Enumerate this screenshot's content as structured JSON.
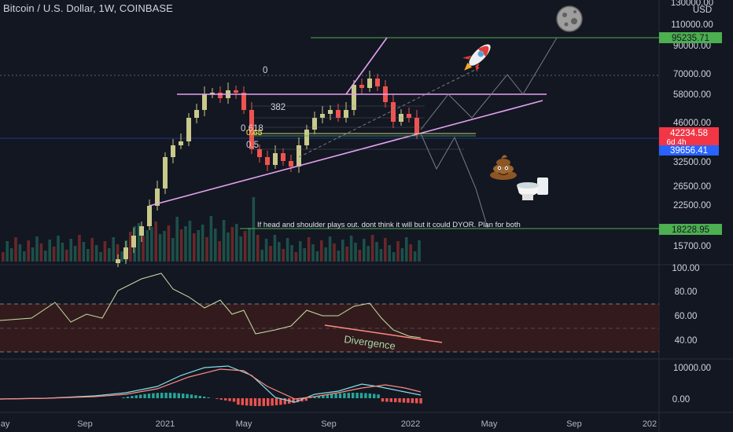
{
  "header": {
    "title": "Bitcoin / U.S. Dollar, 1W, COINBASE"
  },
  "price_axis": {
    "unit": "USD",
    "labels": [
      "130000.00",
      "110000.00",
      "90000.00",
      "70000.00",
      "58000.00",
      "46000.00",
      "32500.00",
      "26500.00",
      "22500.00",
      "15700.00"
    ],
    "badges": {
      "target": "95235.71",
      "current": "42234.58",
      "countdown": "6d 4h",
      "support": "39656.41",
      "lower": "18228.95"
    }
  },
  "rsi_axis": {
    "labels": [
      "100.00",
      "80.00",
      "60.00",
      "40.00"
    ]
  },
  "macd_axis": {
    "labels": [
      "10000.00",
      "0.00"
    ]
  },
  "time_axis": {
    "labels": [
      "May",
      "Sep",
      "2021",
      "May",
      "Sep",
      "2022",
      "May",
      "Sep",
      "202"
    ]
  },
  "annotations": {
    "fib_zero": "0",
    "fib_382": "382",
    "fib_618": "0.618",
    "fib_065": "0.65",
    "fib_05": "0.5",
    "note": "If head and shoulder plays out. dont think it will but it could DYOR. Plan for both",
    "divergence": "Divergence"
  },
  "colors": {
    "background": "#131722",
    "up": "#c9c98a",
    "down": "#ef5350",
    "pink": "#e4a1f0",
    "green_line": "#4caf50",
    "rsi_band": "#3a1c1c",
    "macd_line": "#7fe0e8",
    "signal_line": "#ff8a80",
    "current_badge": "#f23645",
    "support_badge": "#2962ff"
  },
  "icons": [
    "moon-icon",
    "rocket-icon",
    "poop-icon",
    "toilet-icon"
  ]
}
